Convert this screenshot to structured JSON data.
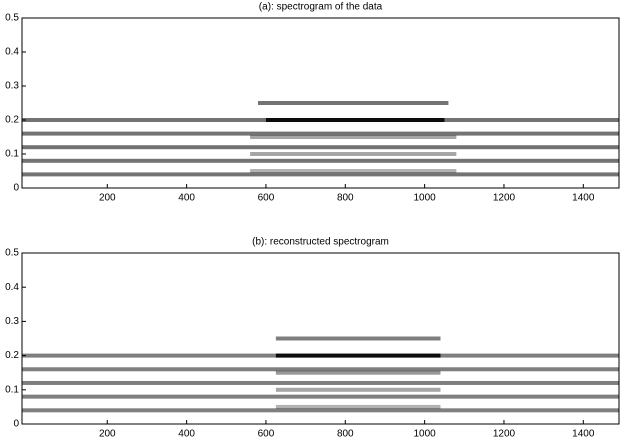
{
  "chart_data": [
    {
      "type": "heatmap",
      "title": "(a): spectrogram of the data",
      "xlim": [
        -15,
        1490
      ],
      "ylim": [
        0,
        0.5
      ],
      "xticks": [
        200,
        400,
        600,
        800,
        1000,
        1200,
        1400
      ],
      "yticks": [
        0,
        0.1,
        0.2,
        0.3,
        0.4,
        0.5
      ],
      "color": "#000000",
      "bands": [
        {
          "y": 0.04,
          "x": [
            -15,
            1490
          ],
          "level": 0.55
        },
        {
          "y": 0.08,
          "x": [
            -15,
            1490
          ],
          "level": 0.55
        },
        {
          "y": 0.12,
          "x": [
            -15,
            1490
          ],
          "level": 0.55
        },
        {
          "y": 0.16,
          "x": [
            -15,
            1490
          ],
          "level": 0.55
        },
        {
          "y": 0.2,
          "x": [
            -15,
            1490
          ],
          "level": 0.55
        },
        {
          "y": 0.05,
          "x": [
            560,
            1080
          ],
          "level": 0.3
        },
        {
          "y": 0.1,
          "x": [
            560,
            1080
          ],
          "level": 0.35
        },
        {
          "y": 0.15,
          "x": [
            560,
            1080
          ],
          "level": 0.35
        },
        {
          "y": 0.2,
          "x": [
            600,
            1050
          ],
          "level": 0.9
        },
        {
          "y": 0.25,
          "x": [
            580,
            1060
          ],
          "level": 0.55
        }
      ]
    },
    {
      "type": "heatmap",
      "title": "(b): reconstructed spectrogram",
      "xlim": [
        -15,
        1490
      ],
      "ylim": [
        0,
        0.5
      ],
      "xticks": [
        200,
        400,
        600,
        800,
        1000,
        1200,
        1400
      ],
      "yticks": [
        0,
        0.1,
        0.2,
        0.3,
        0.4,
        0.5
      ],
      "color": "#000000",
      "bands": [
        {
          "y": 0.04,
          "x": [
            -15,
            1490
          ],
          "level": 0.5
        },
        {
          "y": 0.08,
          "x": [
            -15,
            1490
          ],
          "level": 0.5
        },
        {
          "y": 0.12,
          "x": [
            -15,
            1490
          ],
          "level": 0.5
        },
        {
          "y": 0.16,
          "x": [
            -15,
            1490
          ],
          "level": 0.5
        },
        {
          "y": 0.2,
          "x": [
            -15,
            1490
          ],
          "level": 0.5
        },
        {
          "y": 0.05,
          "x": [
            625,
            1040
          ],
          "level": 0.3
        },
        {
          "y": 0.1,
          "x": [
            625,
            1040
          ],
          "level": 0.35
        },
        {
          "y": 0.15,
          "x": [
            625,
            1040
          ],
          "level": 0.4
        },
        {
          "y": 0.2,
          "x": [
            625,
            1040
          ],
          "level": 0.9
        },
        {
          "y": 0.25,
          "x": [
            625,
            1040
          ],
          "level": 0.5
        }
      ]
    }
  ]
}
